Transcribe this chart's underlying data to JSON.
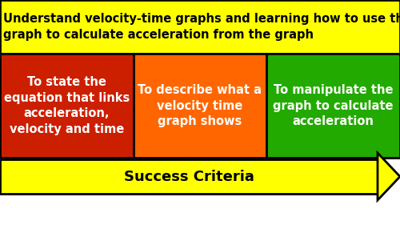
{
  "title_text": "Understand velocity-time graphs and learning how to use this\ngraph to calculate acceleration from the graph",
  "title_bg": "#FFFF00",
  "title_fg": "#000000",
  "cells": [
    {
      "text": "To state the\nequation that links\nacceleration,\nvelocity and time",
      "bg": "#CC1F00",
      "fg": "#FFFFFF",
      "col": 0
    },
    {
      "text": "To describe what a\nvelocity time\ngraph shows",
      "bg": "#FF6600",
      "fg": "#FFFFFF",
      "col": 1
    },
    {
      "text": "To manipulate the\ngraph to calculate\nacceleration",
      "bg": "#22AA00",
      "fg": "#FFFFFF",
      "col": 2
    }
  ],
  "arrow_text": "Success Criteria",
  "arrow_bg": "#FFFF00",
  "arrow_fg": "#000000",
  "bg_color": "#FFFFFF",
  "title_fontsize": 10.5,
  "cell_fontsize": 10.5,
  "arrow_fontsize": 13,
  "fig_width": 5.0,
  "fig_height": 2.81,
  "dpi": 100
}
